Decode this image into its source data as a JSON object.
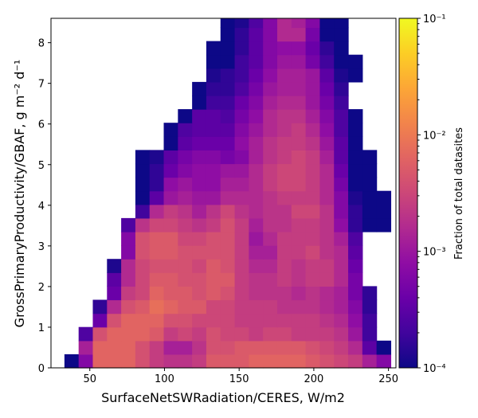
{
  "chart_data": {
    "type": "heatmap",
    "title": "",
    "xlabel": "SurfaceNetSWRadiation/CERES,  W/m2",
    "ylabel": "GrossPrimaryProductivity/GBAF,  g m⁻² d⁻¹",
    "x_ticks": [
      50,
      100,
      150,
      200,
      250
    ],
    "y_ticks": [
      0,
      1,
      2,
      3,
      4,
      5,
      6,
      7,
      8
    ],
    "xlim": [
      24,
      255
    ],
    "ylim": [
      0,
      8.6
    ],
    "bin_width_x": 9.5,
    "bin_height_y": 0.335,
    "grid": false,
    "colorbar": {
      "label": "Fraction of total datasites",
      "scale": "log",
      "range": [
        0.0001,
        0.1
      ],
      "tick_values": [
        0.0001,
        0.001,
        0.01,
        0.1
      ],
      "tick_labels": [
        "10⁻⁴",
        "10⁻³",
        "10⁻²",
        "10⁻¹"
      ],
      "colormap": "plasma"
    },
    "x_bin_starts": [
      33,
      42.5,
      52,
      61.5,
      71,
      80.5,
      90,
      99.5,
      109,
      118.5,
      128,
      137.5,
      147,
      156.5,
      166,
      175.5,
      185,
      194.5,
      204,
      213.5,
      223,
      232.5,
      242
    ],
    "y_bin_starts": [
      0,
      0.335,
      0.67,
      1.005,
      1.34,
      1.675,
      2.01,
      2.345,
      2.68,
      3.015,
      3.35,
      3.685,
      4.02,
      4.355,
      4.69,
      5.025,
      5.36,
      5.695,
      6.03,
      6.365,
      6.7,
      7.035,
      7.37,
      7.705,
      8.04,
      8.375
    ],
    "log_values_rows_bottom_to_top": [
      [
        -4,
        -3.2,
        -2.2,
        -2.2,
        -2.2,
        -2.4,
        -2.6,
        -2.7,
        -2.7,
        -2.6,
        -2.3,
        -2.3,
        -2.3,
        -2.2,
        -2.2,
        -2.2,
        -2.2,
        -2.3,
        -2.4,
        -2.5,
        -2.6,
        -2.9,
        -3.2
      ],
      [
        null,
        -2.9,
        -2.2,
        -2.2,
        -2.2,
        -2.4,
        -2.6,
        -2.9,
        -2.9,
        -2.7,
        -2.4,
        -2.4,
        -2.3,
        -2.3,
        -2.3,
        -2.3,
        -2.3,
        -2.4,
        -2.5,
        -2.6,
        -2.8,
        -3.5,
        -4
      ],
      [
        null,
        -3.6,
        -2.4,
        -2.2,
        -2.2,
        -2.2,
        -2.3,
        -2.6,
        -2.5,
        -2.6,
        -2.4,
        -2.5,
        -2.5,
        -2.6,
        -2.5,
        -2.5,
        -2.6,
        -2.6,
        -2.6,
        -2.7,
        -3,
        -3.7,
        null
      ],
      [
        null,
        null,
        -3.4,
        -2.4,
        -2.2,
        -2.2,
        -2.2,
        -2.4,
        -2.4,
        -2.5,
        -2.5,
        -2.5,
        -2.6,
        -2.6,
        -2.6,
        -2.6,
        -2.6,
        -2.6,
        -2.7,
        -2.8,
        -3.1,
        -3.7,
        null
      ],
      [
        null,
        null,
        -3.8,
        -2.8,
        -2.4,
        -2.3,
        -2.1,
        -2.2,
        -2.3,
        -2.3,
        -2.5,
        -2.5,
        -2.6,
        -2.6,
        -2.6,
        -2.7,
        -2.7,
        -2.7,
        -2.8,
        -2.9,
        -3.2,
        -3.8,
        null
      ],
      [
        null,
        null,
        null,
        -3.4,
        -2.6,
        -2.5,
        -2.2,
        -2.3,
        -2.3,
        -2.4,
        -2.3,
        -2.4,
        -2.6,
        -2.7,
        -2.7,
        -2.7,
        -2.8,
        -2.7,
        -2.8,
        -2.9,
        -3.3,
        -3.8,
        null
      ],
      [
        null,
        null,
        null,
        -3.5,
        -2.8,
        -2.5,
        -2.3,
        -2.3,
        -2.4,
        -2.4,
        -2.3,
        -2.3,
        -2.6,
        -2.7,
        -2.7,
        -2.6,
        -2.7,
        -2.6,
        -2.6,
        -2.8,
        -3.3,
        null,
        null
      ],
      [
        null,
        null,
        null,
        -3.9,
        -2.8,
        -2.5,
        -2.4,
        -2.4,
        -2.4,
        -2.5,
        -2.3,
        -2.4,
        -2.6,
        -2.8,
        -2.8,
        -2.6,
        -2.7,
        -2.6,
        -2.6,
        -2.8,
        -3.4,
        null,
        null
      ],
      [
        null,
        null,
        null,
        null,
        -3.2,
        -2.4,
        -2.3,
        -2.3,
        -2.4,
        -2.4,
        -2.4,
        -2.4,
        -2.6,
        -2.9,
        -2.9,
        -2.6,
        -2.6,
        -2.5,
        -2.7,
        -2.8,
        -3.5,
        null,
        null
      ],
      [
        null,
        null,
        null,
        null,
        -3.2,
        -2.4,
        -2.3,
        -2.3,
        -2.5,
        -2.5,
        -2.4,
        -2.4,
        -2.6,
        -3,
        -2.8,
        -2.6,
        -2.6,
        -2.6,
        -2.7,
        -2.9,
        -3.6,
        null,
        null
      ],
      [
        null,
        null,
        null,
        null,
        -3.6,
        -2.7,
        -2.5,
        -2.5,
        -2.6,
        -2.7,
        -2.6,
        -2.4,
        -2.6,
        -2.9,
        -2.7,
        -2.7,
        -2.6,
        -2.6,
        -2.7,
        -3.1,
        -3.8,
        -4,
        -4
      ],
      [
        null,
        null,
        null,
        null,
        null,
        -3.7,
        -2.8,
        -2.6,
        -2.7,
        -2.9,
        -2.7,
        -2.5,
        -2.7,
        -2.8,
        -2.7,
        -2.7,
        -2.5,
        -2.5,
        -2.7,
        -3.2,
        -3.8,
        -4,
        -4
      ],
      [
        null,
        null,
        null,
        null,
        null,
        -4,
        -3.5,
        -3,
        -2.9,
        -3,
        -3,
        -2.8,
        -2.8,
        -2.8,
        -2.7,
        -2.6,
        -2.6,
        -2.6,
        -2.8,
        -3.2,
        -3.9,
        -4,
        -4
      ],
      [
        null,
        null,
        null,
        null,
        null,
        -4,
        -3.8,
        -3.1,
        -3,
        -3.1,
        -3.1,
        -2.9,
        -2.9,
        -2.8,
        -2.6,
        -2.5,
        -2.5,
        -2.6,
        -2.8,
        -3.3,
        -4,
        -4,
        null
      ],
      [
        null,
        null,
        null,
        null,
        null,
        -4,
        -3.8,
        -3.4,
        -3.2,
        -3.1,
        -3.1,
        -3,
        -3,
        -2.8,
        -2.6,
        -2.5,
        -2.5,
        -2.6,
        -2.8,
        -3.4,
        -4,
        -4,
        null
      ],
      [
        null,
        null,
        null,
        null,
        null,
        -4,
        -3.9,
        -3.5,
        -3.3,
        -3.2,
        -3.2,
        -3.3,
        -3.2,
        -2.9,
        -2.7,
        -2.6,
        -2.5,
        -2.6,
        -2.9,
        -3.5,
        -4,
        -4,
        null
      ],
      [
        null,
        null,
        null,
        null,
        null,
        null,
        null,
        -4,
        -3.5,
        -3.4,
        -3.4,
        -3.4,
        -3.1,
        -2.9,
        -2.7,
        -2.6,
        -2.6,
        -2.7,
        -3,
        -3.5,
        -4,
        null,
        null
      ],
      [
        null,
        null,
        null,
        null,
        null,
        null,
        null,
        -4,
        -3.6,
        -3.5,
        -3.5,
        -3.5,
        -3.2,
        -3,
        -2.8,
        -2.7,
        -2.6,
        -2.8,
        -3.1,
        -3.6,
        -4,
        null,
        null
      ],
      [
        null,
        null,
        null,
        null,
        null,
        null,
        null,
        null,
        -4,
        -3.5,
        -3.5,
        -3.6,
        -3.3,
        -3.1,
        -2.8,
        -2.7,
        -2.7,
        -2.9,
        -3.2,
        -3.6,
        -4,
        null,
        null
      ],
      [
        null,
        null,
        null,
        null,
        null,
        null,
        null,
        null,
        null,
        -4,
        -3.7,
        -3.7,
        -3.4,
        -3.2,
        -2.9,
        -2.8,
        -2.8,
        -3,
        -3.3,
        -3.7,
        null,
        null,
        null
      ],
      [
        null,
        null,
        null,
        null,
        null,
        null,
        null,
        null,
        null,
        -4,
        -3.8,
        -3.8,
        -3.6,
        -3.3,
        -3,
        -2.9,
        -2.9,
        -3,
        -3.4,
        -3.8,
        null,
        null,
        null
      ],
      [
        null,
        null,
        null,
        null,
        null,
        null,
        null,
        null,
        null,
        null,
        -3.9,
        -3.8,
        -3.7,
        -3.4,
        -3.1,
        -2.9,
        -2.9,
        -3,
        -3.5,
        -3.9,
        -4,
        null,
        null
      ],
      [
        null,
        null,
        null,
        null,
        null,
        null,
        null,
        null,
        null,
        null,
        -4,
        -4,
        -3.7,
        -3.5,
        -3.2,
        -3,
        -3,
        -3.3,
        -3.7,
        -4,
        -4,
        null,
        null
      ],
      [
        null,
        null,
        null,
        null,
        null,
        null,
        null,
        null,
        null,
        null,
        -4,
        -4,
        -3.8,
        -3.5,
        -3.2,
        -3.1,
        -3.1,
        -3.4,
        -3.8,
        -4,
        null,
        null,
        null
      ],
      [
        null,
        null,
        null,
        null,
        null,
        null,
        null,
        null,
        null,
        null,
        null,
        -4,
        -3.8,
        -3.5,
        -3.2,
        -2.8,
        -2.8,
        -3.3,
        -4,
        -4,
        null,
        null,
        null
      ],
      [
        null,
        null,
        null,
        null,
        null,
        null,
        null,
        null,
        null,
        null,
        null,
        -4,
        -3.9,
        -3.6,
        -3.2,
        -2.8,
        -2.9,
        -3.2,
        -4,
        -4,
        null,
        null,
        null
      ]
    ]
  }
}
